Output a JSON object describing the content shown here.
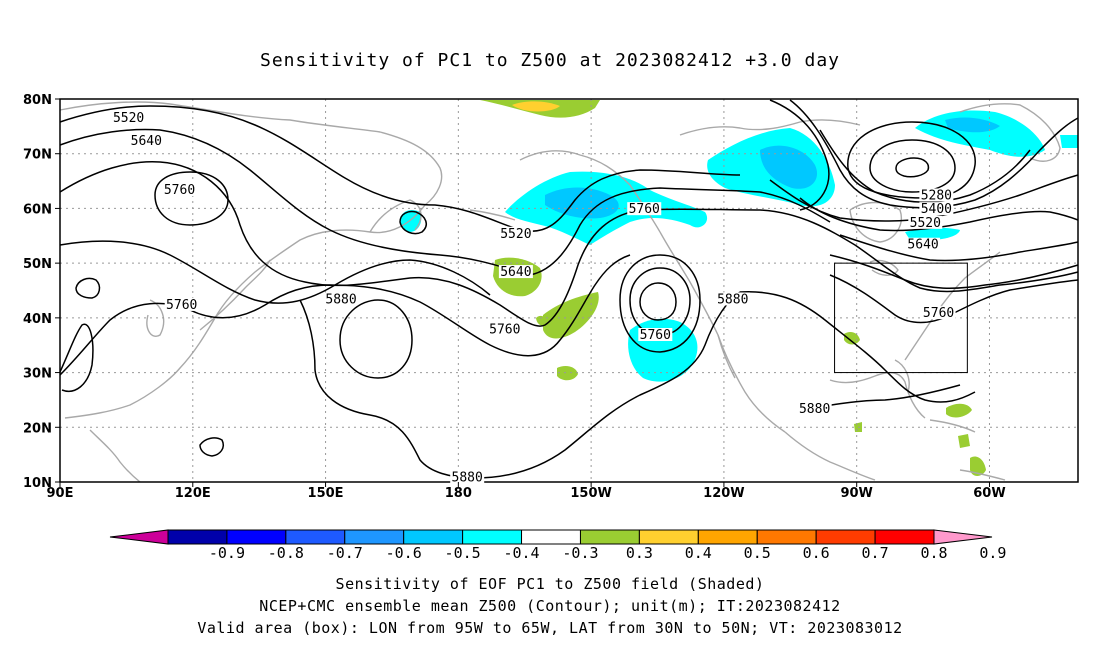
{
  "title": "Sensitivity of PC1 to Z500 at 2023082412 +3.0 day",
  "map": {
    "lat_ticks": [
      "80N",
      "70N",
      "60N",
      "50N",
      "40N",
      "30N",
      "20N",
      "10N"
    ],
    "lon_ticks": [
      "90E",
      "120E",
      "150E",
      "180",
      "150W",
      "120W",
      "90W",
      "60W"
    ],
    "lon_range": [
      "90E",
      "40W"
    ],
    "lat_range": [
      "10N",
      "80N"
    ],
    "grid": "dotted",
    "valid_box": {
      "lon_from": "95W",
      "lon_to": "65W",
      "lat_from": "30N",
      "lat_to": "50N"
    },
    "contour_labels": [
      {
        "text": "5520",
        "lon": 105.5,
        "lat": 76.2
      },
      {
        "text": "5640",
        "lon": 109.5,
        "lat": 72.0
      },
      {
        "text": "5760",
        "lon": 117.0,
        "lat": 63.0
      },
      {
        "text": "5760",
        "lon": 117.5,
        "lat": 42.0
      },
      {
        "text": "5880",
        "lon": 153.5,
        "lat": 43.0
      },
      {
        "text": "5520",
        "lon": 193.0,
        "lat": 55.0
      },
      {
        "text": "5640",
        "lon": 193.0,
        "lat": 48.0
      },
      {
        "text": "5760",
        "lon": 190.5,
        "lat": 37.5
      },
      {
        "text": "5760",
        "lon": 222.0,
        "lat": 59.5
      },
      {
        "text": "5760",
        "lon": 224.5,
        "lat": 36.5
      },
      {
        "text": "5880",
        "lon": 242.0,
        "lat": 43.0
      },
      {
        "text": "5280",
        "lon": 288.0,
        "lat": 62.0
      },
      {
        "text": "5400",
        "lon": 288.0,
        "lat": 59.5
      },
      {
        "text": "5520",
        "lon": 285.5,
        "lat": 57.0
      },
      {
        "text": "5640",
        "lon": 285.0,
        "lat": 53.0
      },
      {
        "text": "5760",
        "lon": 288.5,
        "lat": 40.5
      },
      {
        "text": "5880",
        "lon": 260.5,
        "lat": 23.0
      },
      {
        "text": "5880",
        "lon": 182.0,
        "lat": 10.5
      }
    ]
  },
  "colorbar": {
    "colors": [
      "#cc0099",
      "#0000aa",
      "#0000ff",
      "#1e5aff",
      "#1e96ff",
      "#00c8ff",
      "#00ffff",
      "#ffffff",
      "#9acd32",
      "#ffd02f",
      "#ffa500",
      "#ff7800",
      "#ff3c00",
      "#ff0000",
      "#ff99cc"
    ],
    "labels": [
      "-0.9",
      "-0.8",
      "-0.7",
      "-0.6",
      "-0.5",
      "-0.4",
      "-0.3",
      "0.3",
      "0.4",
      "0.5",
      "0.6",
      "0.7",
      "0.8",
      "0.9"
    ]
  },
  "captions": [
    "Sensitivity of EOF PC1 to Z500 field (Shaded)",
    "NCEP+CMC ensemble mean Z500 (Contour); unit(m); IT:2023082412",
    "Valid area (box): LON from 95W to 65W, LAT from 30N to 50N; VT: 2023083012"
  ],
  "colors": {
    "frame": "#000000",
    "coastline": "#a9a9a9",
    "contour": "#000000",
    "grid": "#999999"
  }
}
